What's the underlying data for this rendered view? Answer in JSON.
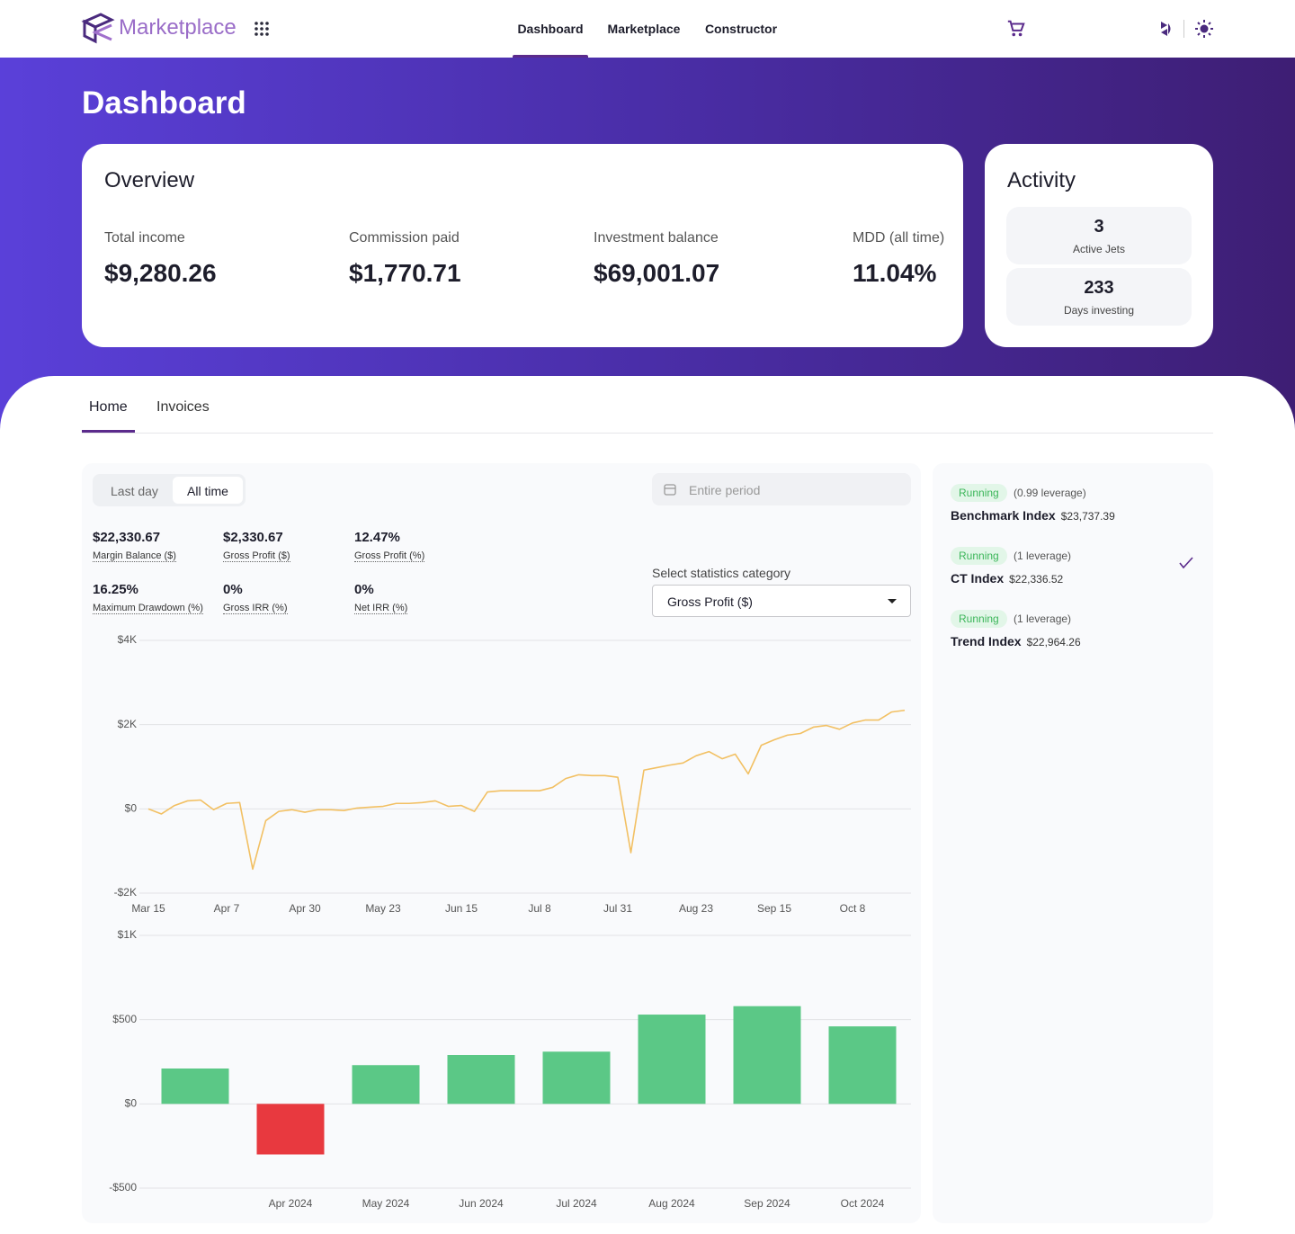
{
  "nav": {
    "brand": "Marketplace",
    "links": [
      "Dashboard",
      "Marketplace",
      "Constructor"
    ]
  },
  "header": {
    "title": "Dashboard"
  },
  "overview": {
    "title": "Overview",
    "items": [
      {
        "label": "Total income",
        "value": "$9,280.26"
      },
      {
        "label": "Commission paid",
        "value": "$1,770.71"
      },
      {
        "label": "Investment balance",
        "value": "$69,001.07"
      },
      {
        "label": "MDD (all time)",
        "value": "11.04%"
      }
    ]
  },
  "activity": {
    "title": "Activity",
    "items": [
      {
        "value": 3,
        "label": "Active Jets"
      },
      {
        "value": 233,
        "label": "Days investing"
      }
    ]
  },
  "tabs": [
    "Home",
    "Invoices"
  ],
  "period_toggle": [
    "Last day",
    "All time"
  ],
  "date_filter": "Entire period",
  "stats": [
    {
      "value": "$22,330.67",
      "label": "Margin Balance ($)"
    },
    {
      "value": "$2,330.67",
      "label": "Gross Profit ($)"
    },
    {
      "value": "12.47%",
      "label": "Gross Profit (%)"
    },
    {
      "value": "16.25%",
      "label": "Maximum Drawdown (%)"
    },
    {
      "value": "0%",
      "label": "Gross IRR (%)"
    },
    {
      "value": "0%",
      "label": "Net IRR (%)"
    }
  ],
  "category_select": {
    "label": "Select statistics category",
    "value": "Gross Profit ($)"
  },
  "jets": [
    {
      "status": "Running",
      "leverage": "(0.99 leverage)",
      "name": "Benchmark Index",
      "amount": "$23,737.39"
    },
    {
      "status": "Running",
      "leverage": "(1 leverage)",
      "name": "CT Index",
      "amount": "$22,336.52"
    },
    {
      "status": "Running",
      "leverage": "(1 leverage)",
      "name": "Trend Index",
      "amount": "$22,964.26"
    }
  ],
  "chart_data": [
    {
      "type": "line",
      "color": "#f2c063",
      "grid": true,
      "categories": [
        "Mar 15",
        null,
        null,
        null,
        null,
        null,
        "Apr 7",
        null,
        null,
        null,
        null,
        null,
        "Apr 30",
        null,
        null,
        null,
        null,
        null,
        "May 23",
        null,
        null,
        null,
        null,
        null,
        "Jun 15",
        null,
        null,
        null,
        null,
        null,
        "Jul 8",
        null,
        null,
        null,
        null,
        null,
        "Jul 31",
        null,
        null,
        null,
        null,
        null,
        "Aug 23",
        null,
        null,
        null,
        null,
        null,
        "Sep 15",
        null,
        null,
        null,
        null,
        null,
        "Oct 8",
        null,
        null,
        null,
        null
      ],
      "values": [
        0,
        -120,
        80,
        190,
        210,
        -20,
        130,
        150,
        -1430,
        -280,
        -60,
        -20,
        -80,
        -20,
        -20,
        -40,
        20,
        40,
        60,
        130,
        130,
        150,
        190,
        60,
        80,
        -60,
        400,
        430,
        430,
        430,
        430,
        510,
        720,
        810,
        790,
        790,
        750,
        -1040,
        920,
        980,
        1040,
        1090,
        1260,
        1360,
        1190,
        1300,
        830,
        1510,
        1640,
        1750,
        1790,
        1940,
        1980,
        1890,
        2040,
        2110,
        2110,
        2300,
        2340
      ],
      "ylim": [
        -2000,
        4000
      ],
      "yticks": [
        {
          "value": 4000,
          "label": "$4K"
        },
        {
          "value": 2000,
          "label": "$2K"
        },
        {
          "value": 0,
          "label": "$0"
        },
        {
          "value": -2000,
          "label": "-$2K"
        }
      ]
    },
    {
      "type": "bar",
      "color": "#5bc886",
      "negative_color": "#e8393f",
      "grid": true,
      "categories": [
        null,
        "Apr 2024",
        "May 2024",
        "Jun 2024",
        "Jul 2024",
        "Aug 2024",
        "Sep 2024",
        "Oct 2024"
      ],
      "values": [
        210,
        -300,
        230,
        290,
        310,
        530,
        580,
        460
      ],
      "ylim": [
        -500,
        1000
      ],
      "yticks": [
        {
          "value": 1000,
          "label": "$1K"
        },
        {
          "value": 500,
          "label": "$500"
        },
        {
          "value": 0,
          "label": "$0"
        },
        {
          "value": -500,
          "label": "-$500"
        }
      ]
    }
  ]
}
